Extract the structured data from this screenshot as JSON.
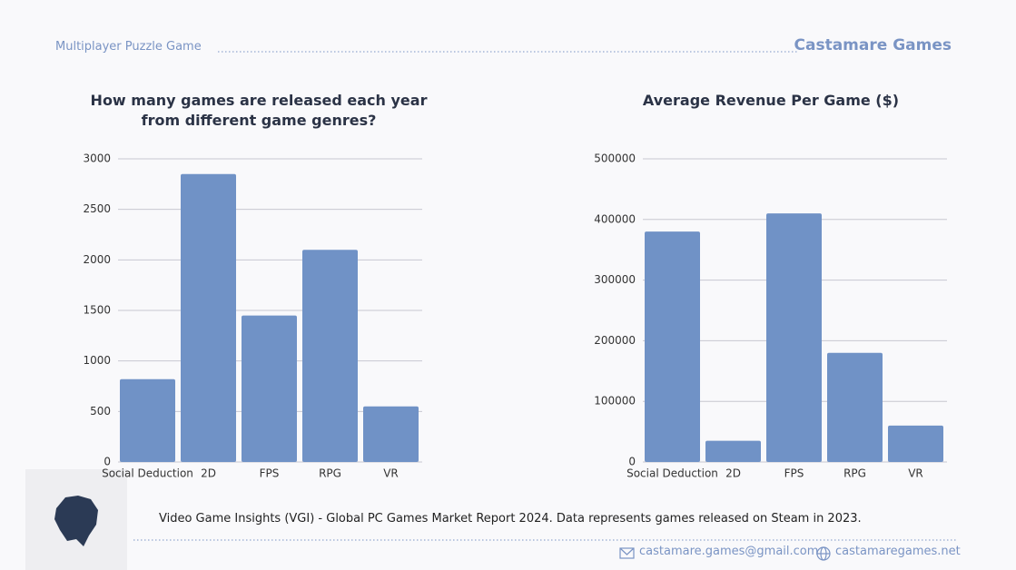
{
  "header": {
    "subtitle": "Multiplayer Puzzle Game",
    "brand": "Castamare Games"
  },
  "chart_data": [
    {
      "type": "bar",
      "title": "How many games are released each year from different game genres?",
      "categories": [
        "Social Deduction",
        "2D",
        "FPS",
        "RPG",
        "VR"
      ],
      "values": [
        820,
        2850,
        1450,
        2100,
        550
      ],
      "color": "#7092c6",
      "ylim": [
        0,
        3000
      ],
      "yticks": [
        0,
        500,
        1000,
        1500,
        2000,
        2500,
        3000
      ],
      "grid": true
    },
    {
      "type": "bar",
      "title": "Average Revenue Per Game ($)",
      "categories": [
        "Social Deduction",
        "2D",
        "FPS",
        "RPG",
        "VR"
      ],
      "values": [
        380000,
        35000,
        410000,
        180000,
        60000
      ],
      "color": "#7092c6",
      "ylim": [
        0,
        500000
      ],
      "yticks": [
        0,
        100000,
        200000,
        300000,
        400000,
        500000
      ],
      "grid": true
    }
  ],
  "footer": {
    "source": "Video Game Insights (VGI) - Global PC Games Market Report 2024. Data represents games released on Steam in 2023.",
    "email": "castamare.games@gmail.com",
    "website": "castamaregames.net"
  }
}
